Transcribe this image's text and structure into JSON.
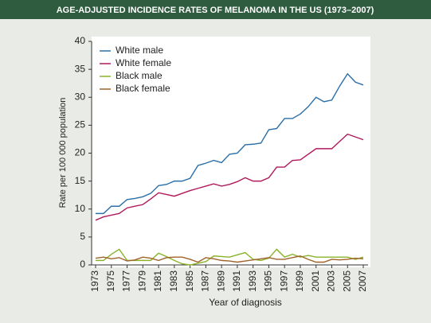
{
  "chart_data": {
    "type": "line",
    "title": "AGE-ADJUSTED INCIDENCE RATES OF MELANOMA IN THE US (1973–2007)",
    "x_label": "Year of diagnosis",
    "y_label": "Rate per 100 000 population",
    "x": [
      1973,
      1974,
      1975,
      1976,
      1977,
      1978,
      1979,
      1980,
      1981,
      1982,
      1983,
      1984,
      1985,
      1986,
      1987,
      1988,
      1989,
      1990,
      1991,
      1992,
      1993,
      1994,
      1995,
      1996,
      1997,
      1998,
      1999,
      2000,
      2001,
      2002,
      2003,
      2004,
      2005,
      2006,
      2007
    ],
    "series": [
      {
        "name": "White male",
        "color": "#2a6fa8",
        "values": [
          9.2,
          9.2,
          10.5,
          10.5,
          11.7,
          11.9,
          12.2,
          12.8,
          14.2,
          14.4,
          15.0,
          15.0,
          15.5,
          17.8,
          18.2,
          18.7,
          18.3,
          19.8,
          20.0,
          21.5,
          21.6,
          21.8,
          24.2,
          24.4,
          26.2,
          26.2,
          27.0,
          28.3,
          30.0,
          29.2,
          29.5,
          32.0,
          34.2,
          32.7,
          32.2
        ]
      },
      {
        "name": "White female",
        "color": "#b0185a",
        "values": [
          8.0,
          8.6,
          8.9,
          9.2,
          10.2,
          10.5,
          10.8,
          11.8,
          12.9,
          12.6,
          12.3,
          12.8,
          13.3,
          13.7,
          14.1,
          14.5,
          14.1,
          14.4,
          14.9,
          15.6,
          15.0,
          15.0,
          15.6,
          17.5,
          17.5,
          18.7,
          18.8,
          19.8,
          20.8,
          20.8,
          20.8,
          22.1,
          23.4,
          22.9,
          22.4
        ]
      },
      {
        "name": "Black male",
        "color": "#8ab32a",
        "values": [
          0.8,
          0.8,
          1.9,
          2.8,
          0.8,
          0.8,
          0.8,
          0.8,
          2.1,
          1.5,
          0.8,
          0.2,
          0.0,
          0.3,
          0.6,
          1.6,
          1.5,
          1.4,
          1.8,
          2.2,
          1.0,
          0.8,
          1.2,
          2.8,
          1.4,
          1.9,
          1.4,
          1.7,
          1.4,
          1.4,
          1.4,
          1.4,
          1.4,
          1.0,
          1.4
        ]
      },
      {
        "name": "Black female",
        "color": "#a0622a",
        "values": [
          1.2,
          1.4,
          1.1,
          1.3,
          0.7,
          0.9,
          1.4,
          1.2,
          0.8,
          1.3,
          1.4,
          1.4,
          1.0,
          0.5,
          1.3,
          1.1,
          0.8,
          0.7,
          0.5,
          0.7,
          0.9,
          1.1,
          1.3,
          1.0,
          1.0,
          1.3,
          1.6,
          1.0,
          0.5,
          0.5,
          1.0,
          0.9,
          1.0,
          1.2,
          1.1
        ]
      }
    ],
    "xlim": [
      1973,
      2007
    ],
    "xticks": [
      1973,
      1975,
      1977,
      1979,
      1981,
      1983,
      1985,
      1987,
      1989,
      1991,
      1993,
      1995,
      1997,
      1999,
      2001,
      2003,
      2005,
      2007
    ],
    "ylim": [
      0,
      40
    ],
    "yticks": [
      0,
      5,
      10,
      15,
      20,
      25,
      30,
      35,
      40
    ],
    "grid": false,
    "legend": "upper left"
  }
}
